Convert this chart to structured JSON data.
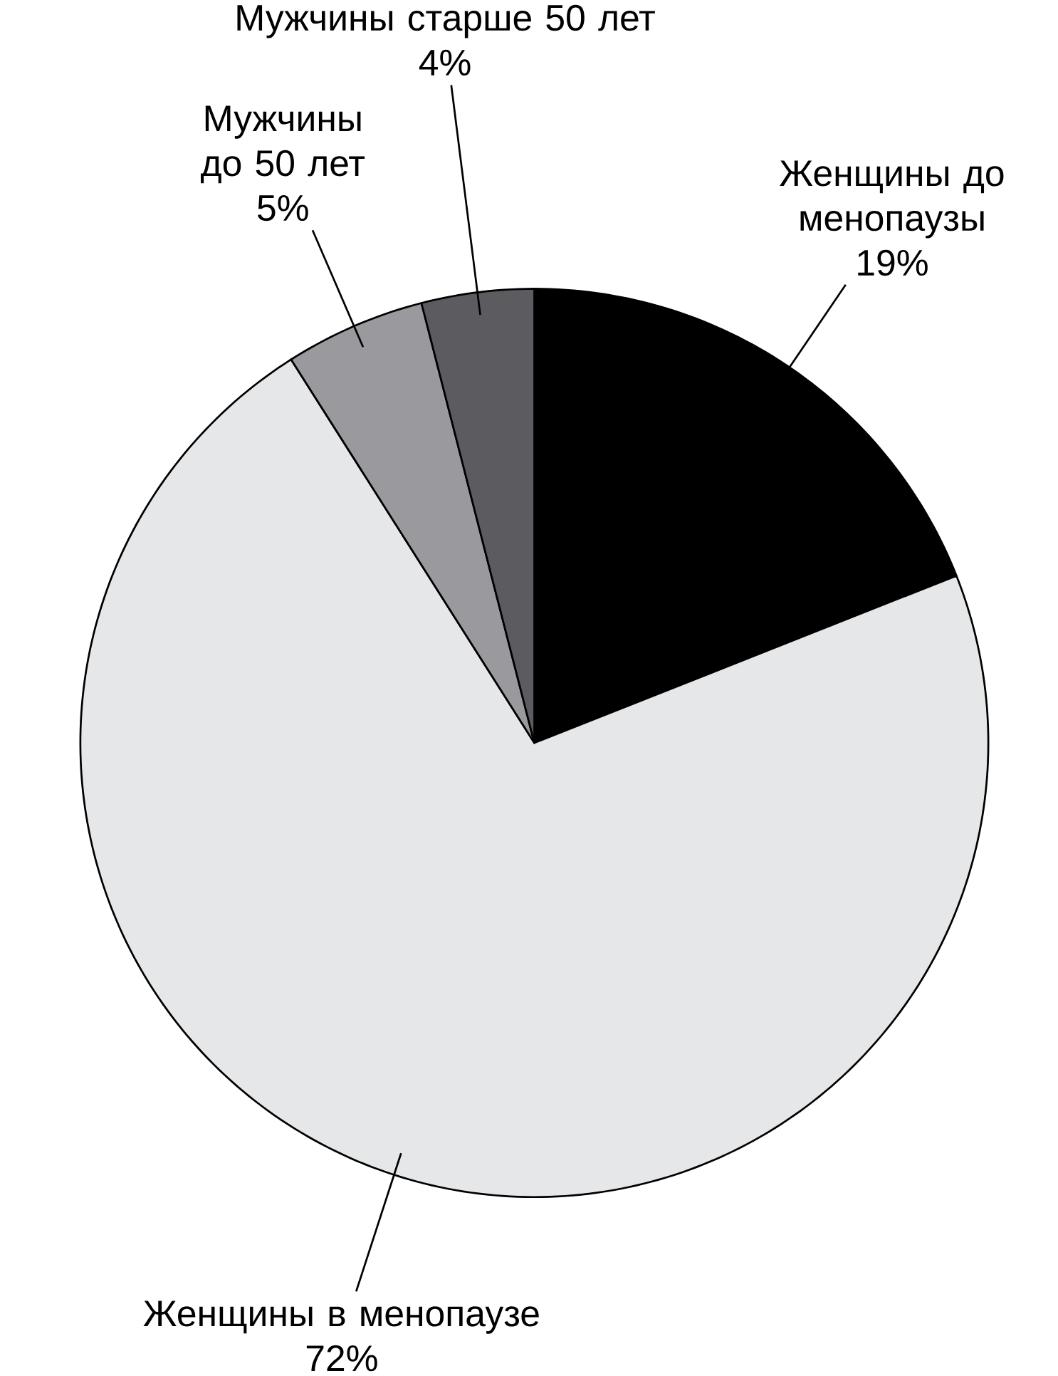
{
  "chart_data": {
    "type": "pie",
    "categories": [
      "Женщины до менопаузы",
      "Женщины в менопаузе",
      "Мужчины до 50 лет",
      "Мужчины старше 50 лет"
    ],
    "values": [
      19,
      72,
      5,
      4
    ],
    "value_labels": [
      "19%",
      "72%",
      "5%",
      "4%"
    ],
    "colors": [
      "#000000",
      "#e6e7e8",
      "#9a9a9e",
      "#5c5b60"
    ]
  }
}
